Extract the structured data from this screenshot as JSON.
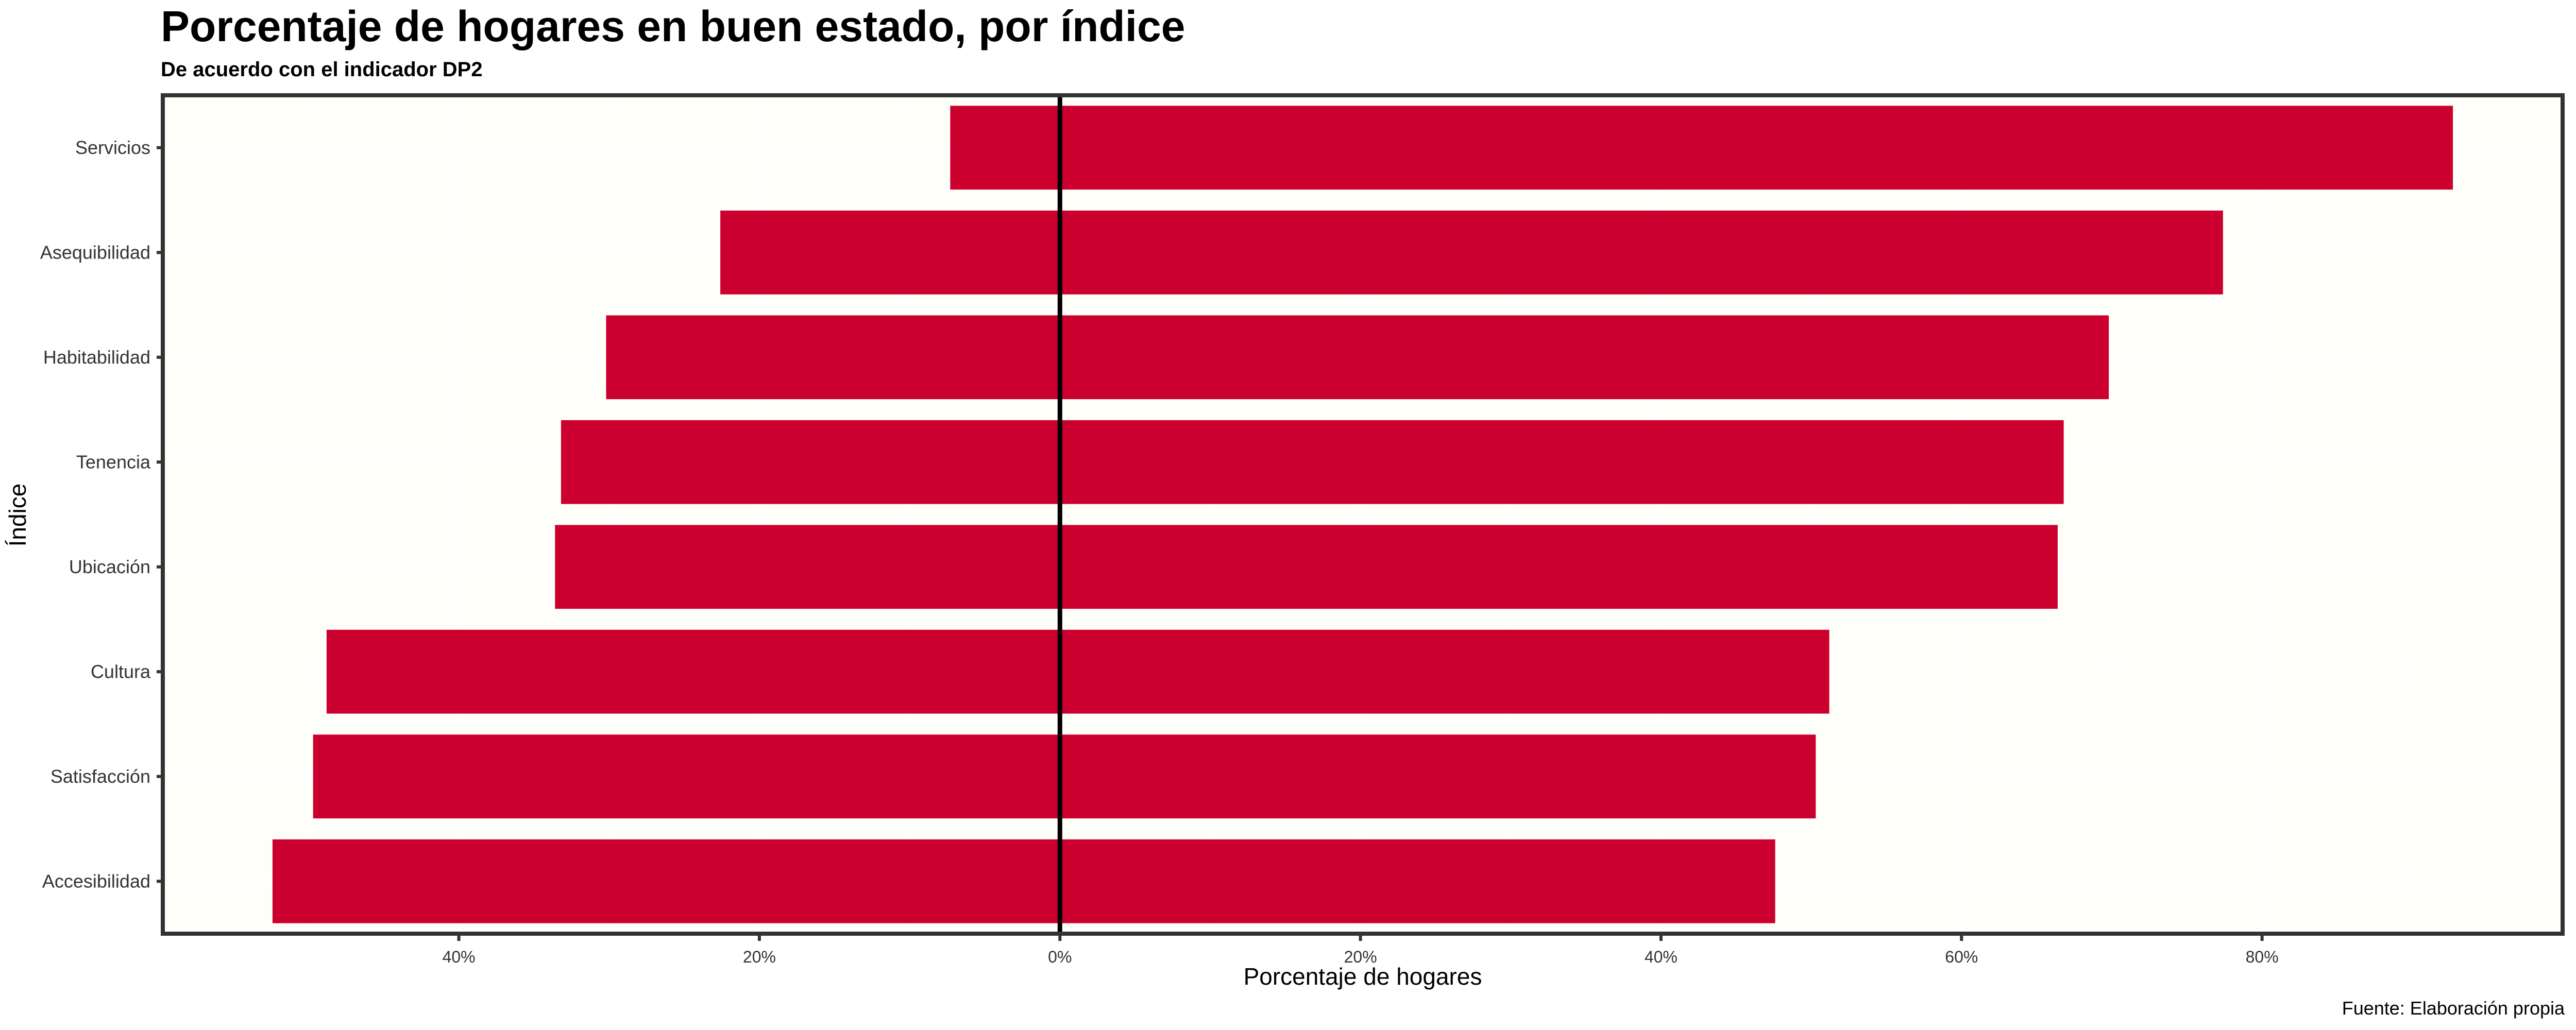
{
  "chart_data": {
    "type": "bar",
    "orientation": "horizontal-diverging",
    "title": "Porcentaje de hogares en buen estado, por índice",
    "subtitle": "De acuerdo con el indicador DP2",
    "xlabel": "Porcentaje de hogares",
    "ylabel": "Índice",
    "caption": "Fuente: Elaboración propia",
    "categories": [
      "Servicios",
      "Asequibilidad",
      "Habitabilidad",
      "Tenencia",
      "Ubicación",
      "Cultura",
      "Satisfacción",
      "Accesibilidad"
    ],
    "series": [
      {
        "values_negative": [
          -7.3,
          -22.6,
          -30.2,
          -33.2,
          -33.6,
          -48.8,
          -49.7,
          -52.4
        ],
        "values_positive": [
          92.7,
          77.4,
          69.8,
          66.8,
          66.4,
          51.2,
          50.3,
          47.6
        ]
      }
    ],
    "xlim": [
      -59.7,
      100
    ],
    "xticks": [
      -40,
      -20,
      0,
      20,
      40,
      60,
      80
    ],
    "xtick_labels": [
      "40%",
      "20%",
      "0%",
      "20%",
      "40%",
      "60%",
      "80%"
    ],
    "grid": true,
    "reference_line": 0,
    "colors": {
      "bar": "#CC002E",
      "panel": "#FFFFFA",
      "border": "#333333"
    }
  }
}
